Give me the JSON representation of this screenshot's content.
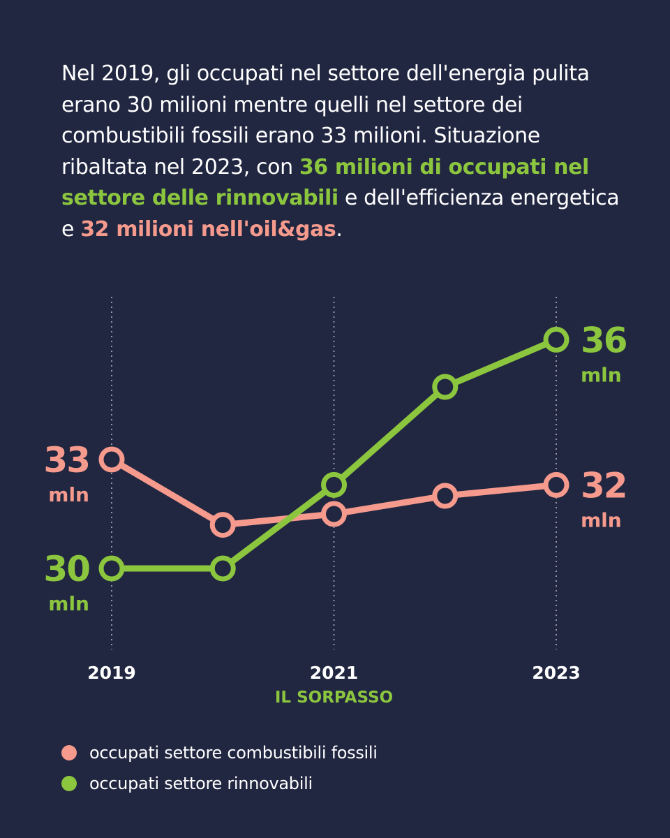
{
  "intro": {
    "part1": "Nel 2019, gli occupati nel settore dell'energia pulita erano 30 milioni mentre quelli nel settore dei combustibili fossili erano 33 milioni. Situazione ribaltata nel 2023, con ",
    "highlight_green": "36 milioni di occupati nel settore delle rinnovabili",
    "part2": " e dell'efficienza energetica e ",
    "highlight_pink": "32 milioni nell'oil&gas",
    "part3": "."
  },
  "colors": {
    "background": "#212641",
    "fossil": "#f59a8c",
    "renewable": "#8cc63f",
    "text": "#ffffff"
  },
  "chart_data": {
    "type": "line",
    "x": [
      2019,
      2020,
      2021,
      2022,
      2023
    ],
    "ylim": [
      27,
      38
    ],
    "series": [
      {
        "name": "occupati settore combustibili fossili",
        "key": "fossil",
        "values": [
          33,
          31.2,
          31.5,
          32,
          32.3
        ]
      },
      {
        "name": "occupati settore rinnovabili",
        "key": "renewable",
        "values": [
          30,
          30,
          32.3,
          35,
          36.3
        ]
      }
    ],
    "x_tick_labels": [
      {
        "x": 2019,
        "label": "2019"
      },
      {
        "x": 2021,
        "label": "2021"
      },
      {
        "x": 2023,
        "label": "2023"
      }
    ],
    "annotation": {
      "x": 2021,
      "text": "IL SORPASSO"
    },
    "value_labels": [
      {
        "series": "fossil",
        "x": 2019,
        "side": "left",
        "value": "33",
        "unit": "mln"
      },
      {
        "series": "renewable",
        "x": 2019,
        "side": "left",
        "value": "30",
        "unit": "mln"
      },
      {
        "series": "renewable",
        "x": 2023,
        "side": "right",
        "value": "36",
        "unit": "mln"
      },
      {
        "series": "fossil",
        "x": 2023,
        "side": "right",
        "value": "32",
        "unit": "mln"
      }
    ],
    "legend": [
      {
        "key": "fossil",
        "label": "occupati settore combustibili fossili"
      },
      {
        "key": "renewable",
        "label": "occupati settore rinnovabili"
      }
    ]
  }
}
